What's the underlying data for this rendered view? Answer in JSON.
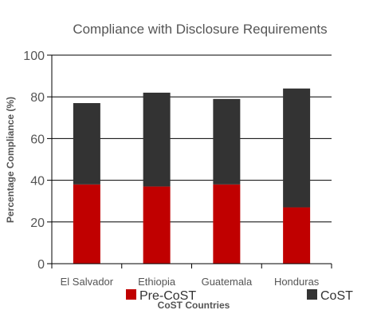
{
  "chart_data": {
    "type": "bar",
    "stacked": true,
    "title": "Compliance with Disclosure Requirements",
    "xlabel": "CoST Countries",
    "ylabel": "Percentage Compliance (%)",
    "ylim": [
      0,
      100
    ],
    "yticks": [
      0,
      20,
      40,
      60,
      80,
      100
    ],
    "grid": true,
    "categories": [
      "El Salvador",
      "Ethiopia",
      "Guatemala",
      "Honduras"
    ],
    "series": [
      {
        "name": "Pre-CoST",
        "color": "#c00000",
        "values": [
          38,
          37,
          38,
          27
        ]
      },
      {
        "name": "CoST",
        "color": "#333333",
        "values": [
          39,
          45,
          41,
          57
        ]
      }
    ],
    "legend_placement": "bottom"
  }
}
